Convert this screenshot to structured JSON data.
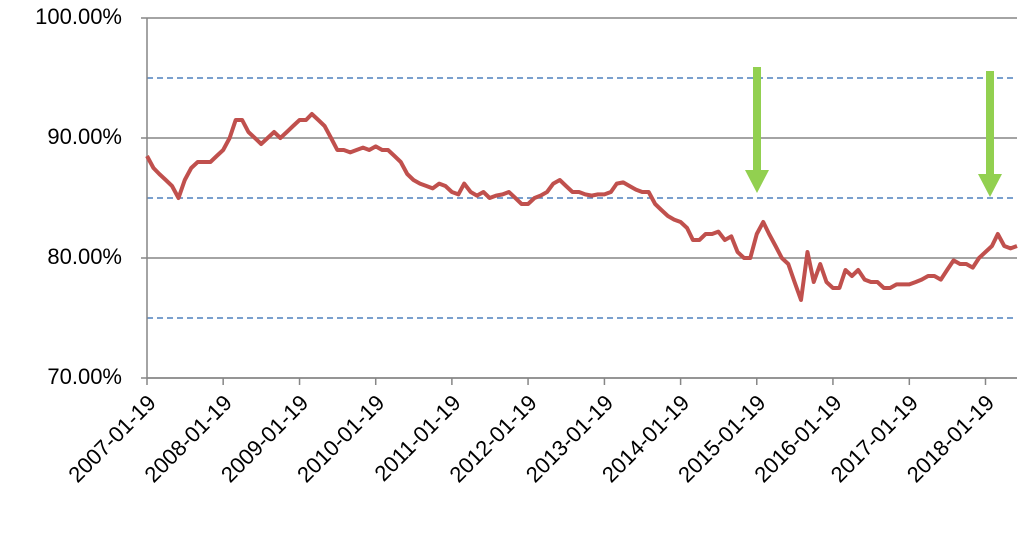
{
  "chart_data": {
    "type": "line",
    "x": [
      "2007-01-19",
      "2007-02-19",
      "2007-03-19",
      "2007-04-19",
      "2007-05-19",
      "2007-06-19",
      "2007-07-19",
      "2007-08-19",
      "2007-09-19",
      "2007-10-19",
      "2007-11-19",
      "2007-12-19",
      "2008-01-19",
      "2008-02-19",
      "2008-03-19",
      "2008-04-19",
      "2008-05-19",
      "2008-06-19",
      "2008-07-19",
      "2008-08-19",
      "2008-09-19",
      "2008-10-19",
      "2008-11-19",
      "2008-12-19",
      "2009-01-19",
      "2009-02-19",
      "2009-03-19",
      "2009-04-19",
      "2009-05-19",
      "2009-06-19",
      "2009-07-19",
      "2009-08-19",
      "2009-09-19",
      "2009-10-19",
      "2009-11-19",
      "2009-12-19",
      "2010-01-19",
      "2010-02-19",
      "2010-03-19",
      "2010-04-19",
      "2010-05-19",
      "2010-06-19",
      "2010-07-19",
      "2010-08-19",
      "2010-09-19",
      "2010-10-19",
      "2010-11-19",
      "2010-12-19",
      "2011-01-19",
      "2011-02-19",
      "2011-03-19",
      "2011-04-19",
      "2011-05-19",
      "2011-06-19",
      "2011-07-19",
      "2011-08-19",
      "2011-09-19",
      "2011-10-19",
      "2011-11-19",
      "2011-12-19",
      "2012-01-19",
      "2012-02-19",
      "2012-03-19",
      "2012-04-19",
      "2012-05-19",
      "2012-06-19",
      "2012-07-19",
      "2012-08-19",
      "2012-09-19",
      "2012-10-19",
      "2012-11-19",
      "2012-12-19",
      "2013-01-19",
      "2013-02-19",
      "2013-03-19",
      "2013-04-19",
      "2013-05-19",
      "2013-06-19",
      "2013-07-19",
      "2013-08-19",
      "2013-09-19",
      "2013-10-19",
      "2013-11-19",
      "2013-12-19",
      "2014-01-19",
      "2014-02-19",
      "2014-03-19",
      "2014-04-19",
      "2014-05-19",
      "2014-06-19",
      "2014-07-19",
      "2014-08-19",
      "2014-09-19",
      "2014-10-19",
      "2014-11-19",
      "2014-12-19",
      "2015-01-19",
      "2015-02-19",
      "2015-03-19",
      "2015-04-19",
      "2015-05-19",
      "2015-06-19",
      "2015-07-19",
      "2015-08-19",
      "2015-09-19",
      "2015-10-19",
      "2015-11-19",
      "2015-12-19",
      "2016-01-19",
      "2016-02-19",
      "2016-03-19",
      "2016-04-19",
      "2016-05-19",
      "2016-06-19",
      "2016-07-19",
      "2016-08-19",
      "2016-09-19",
      "2016-10-19",
      "2016-11-19",
      "2016-12-19",
      "2017-01-19",
      "2017-02-19",
      "2017-03-19",
      "2017-04-19",
      "2017-05-19",
      "2017-06-19",
      "2017-07-19",
      "2017-08-19",
      "2017-09-19",
      "2017-10-19",
      "2017-11-19",
      "2017-12-19",
      "2018-01-19",
      "2018-02-19",
      "2018-03-19",
      "2018-04-19",
      "2018-05-19",
      "2018-06-19"
    ],
    "values": [
      88.5,
      87.5,
      87,
      86.5,
      86,
      85,
      86.5,
      87.5,
      88,
      88,
      88,
      88.5,
      89,
      90,
      91.5,
      91.5,
      90.5,
      90,
      89.5,
      90,
      90.5,
      90,
      90.5,
      91,
      91.5,
      91.5,
      92,
      91.5,
      91,
      90,
      89,
      89,
      88.8,
      89,
      89.2,
      89,
      89.3,
      89,
      89,
      88.5,
      88,
      87,
      86.5,
      86.2,
      86,
      85.8,
      86.2,
      86,
      85.5,
      85.3,
      86.2,
      85.5,
      85.2,
      85.5,
      85,
      85.2,
      85.3,
      85.5,
      85,
      84.5,
      84.5,
      85,
      85.2,
      85.5,
      86.2,
      86.5,
      86,
      85.5,
      85.5,
      85.3,
      85.2,
      85.3,
      85.3,
      85.5,
      86.2,
      86.3,
      86,
      85.7,
      85.5,
      85.5,
      84.5,
      84,
      83.5,
      83.2,
      83,
      82.5,
      81.5,
      81.5,
      82,
      82,
      82.2,
      81.5,
      81.8,
      80.5,
      80,
      80,
      82,
      83,
      82,
      81,
      80,
      79.5,
      78,
      76.5,
      80.5,
      78,
      79.5,
      78,
      77.5,
      77.5,
      79,
      78.5,
      79,
      78.2,
      78,
      78,
      77.5,
      77.5,
      77.8,
      77.8,
      77.8,
      78,
      78.2,
      78.5,
      78.5,
      78.2,
      79,
      79.8,
      79.5,
      79.5,
      79.2,
      80,
      80.5,
      81,
      82,
      81,
      80.8,
      81
    ],
    "color": "#c0504d",
    "xlim": [
      "2007-01-19",
      "2018-06-19"
    ],
    "xticks": [
      "2007-01-19",
      "2008-01-19",
      "2009-01-19",
      "2010-01-19",
      "2011-01-19",
      "2012-01-19",
      "2013-01-19",
      "2014-01-19",
      "2015-01-19",
      "2016-01-19",
      "2017-01-19",
      "2018-01-19"
    ],
    "ylim": [
      70,
      100
    ],
    "yticks": [
      {
        "value": 70,
        "label": "70.00%"
      },
      {
        "value": 80,
        "label": "80.00%"
      },
      {
        "value": 90,
        "label": "90.00%"
      },
      {
        "value": 100,
        "label": "100.00%"
      }
    ],
    "reference_lines": [
      95,
      85,
      75
    ],
    "reference_color": "#4f81bd",
    "grid": true
  }
}
